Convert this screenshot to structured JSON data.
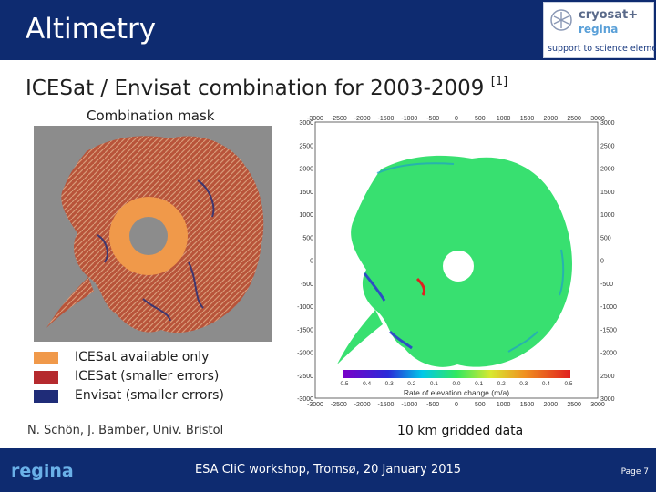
{
  "header": {
    "title": "Altimetry"
  },
  "logo": {
    "name": "cryosat+",
    "sub": "regina",
    "tagline": "support to science element"
  },
  "slide": {
    "title": "ICESat / Envisat combination for 2003-2009",
    "reference": "[1]"
  },
  "mask_panel": {
    "label": "Combination mask"
  },
  "legend": [
    {
      "label": "ICESat available only",
      "color": "#f0994a"
    },
    {
      "label": "ICESat (smaller errors)",
      "color": "#b52a2e"
    },
    {
      "label": "Envisat (smaller errors)",
      "color": "#1f2c78"
    }
  ],
  "credit": "N. Schön, J. Bamber, Univ. Bristol",
  "rate_panel": {
    "caption": "10 km gridded data",
    "colorbar_label": "Rate of elevation change (m/a)",
    "colorbar_ticks": [
      "0.5",
      "0.4",
      "0.3",
      "0.2",
      "0.1",
      "0.0",
      "0.1",
      "0.2",
      "0.3",
      "0.4",
      "0.5"
    ],
    "x_ticks": [
      "-3000",
      "-2500",
      "-2000",
      "-1500",
      "-1000",
      "-500",
      "0",
      "500",
      "1000",
      "1500",
      "2000",
      "2500",
      "3000"
    ],
    "y_ticks": [
      "3000",
      "2500",
      "2000",
      "1500",
      "1000",
      "500",
      "0",
      "-500",
      "-1000",
      "-1500",
      "-2000",
      "-2500",
      "-3000"
    ],
    "right_ticks": [
      "3000",
      "2500",
      "2000",
      "1500",
      "1000",
      "500",
      "0",
      "-500",
      "-1000",
      "-1500",
      "-2000",
      "2500",
      "3000"
    ]
  },
  "footer": {
    "logo": "regina",
    "event": "ESA CliC workshop, Tromsø, 20 January 2015",
    "page": "Page 7"
  }
}
